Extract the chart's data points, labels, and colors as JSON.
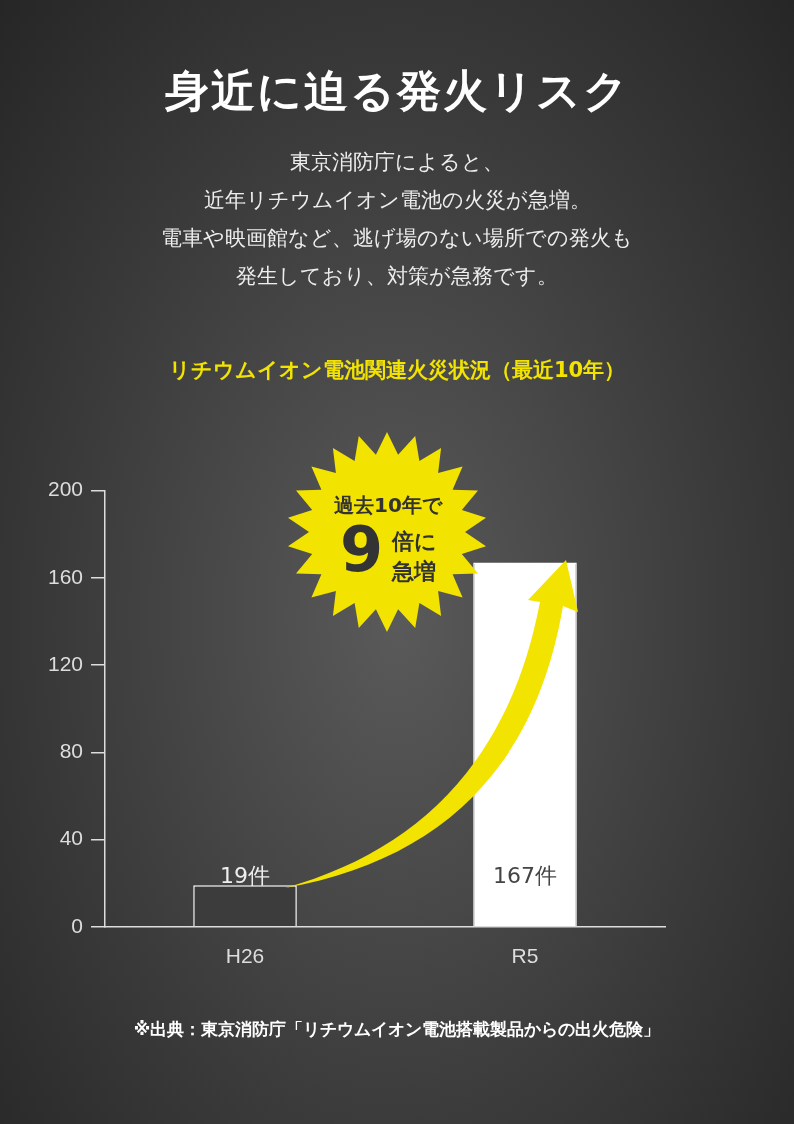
{
  "chart_data": {
    "type": "bar",
    "title": "身近に迫る発火リスク",
    "subtitle": "東京消防庁によると、",
    "categories": [
      "H26",
      "R5"
    ],
    "values": [
      19,
      167
    ],
    "colors": [
      "#3c3c3c",
      "#ffffff"
    ],
    "value_labels": [
      "19件",
      "167件"
    ],
    "ylim": [
      0,
      200
    ],
    "yticks": [
      0,
      40,
      80,
      120,
      160,
      200
    ],
    "grid": false,
    "legend": false,
    "annotations": [
      "近年リチウムイオン電池の火災が急増。",
      "電車や映画館など、逃げ場のない場所での発火も",
      "発生しており、対策が急務です。",
      "リチウムイオン電池関連火災状況（最近10年）",
      "過去10年で",
      "9",
      "倍に",
      "急増",
      "※出典：東京消防庁「リチウムイオン電池搭載製品からの出火危険」"
    ]
  }
}
